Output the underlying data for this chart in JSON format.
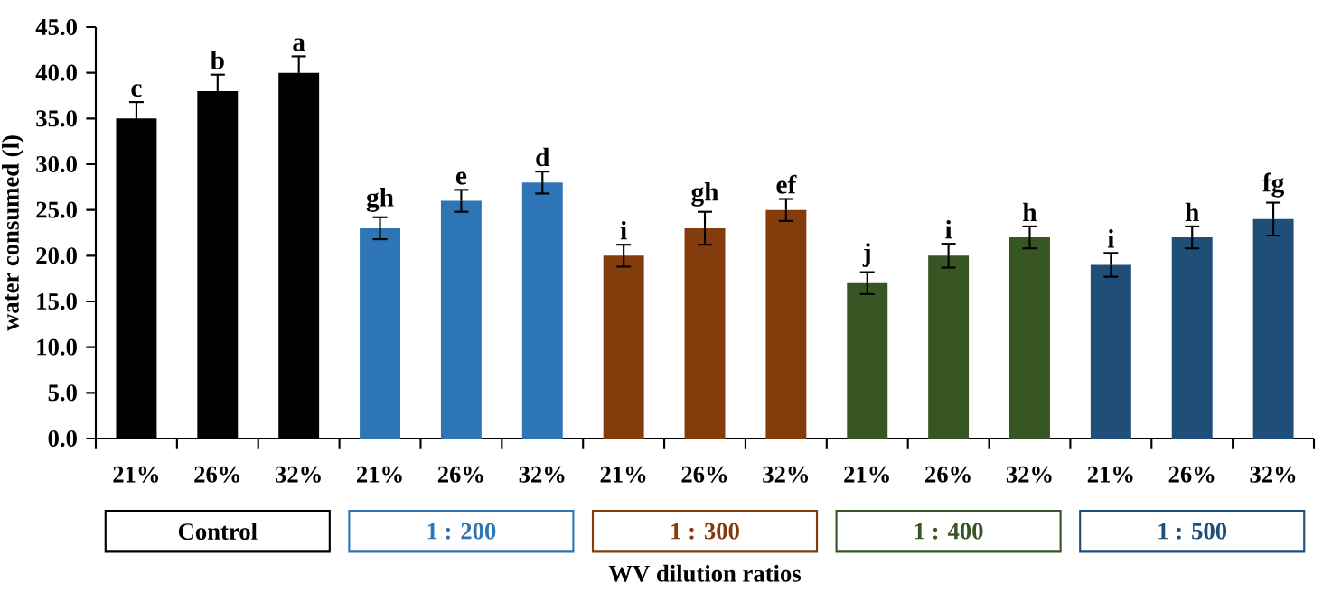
{
  "chart_data": {
    "type": "bar",
    "xlabel": "WV dilution ratios",
    "ylabel": "water consumed (l)",
    "categories": [
      "21%",
      "26%",
      "32%",
      "21%",
      "26%",
      "32%",
      "21%",
      "26%",
      "32%",
      "21%",
      "26%",
      "32%",
      "21%",
      "26%",
      "32%"
    ],
    "values": [
      35,
      38,
      40,
      23,
      26,
      28,
      20,
      23,
      25,
      17,
      20,
      22,
      19,
      22,
      24
    ],
    "errors": [
      1.8,
      1.8,
      1.8,
      1.2,
      1.2,
      1.2,
      1.2,
      1.8,
      1.2,
      1.2,
      1.3,
      1.2,
      1.3,
      1.2,
      1.8
    ],
    "colors": [
      "#000000",
      "#000000",
      "#000000",
      "#2e75b6",
      "#2e75b6",
      "#2e75b6",
      "#843c0c",
      "#843c0c",
      "#843c0c",
      "#375623",
      "#375623",
      "#375623",
      "#1f4e79",
      "#1f4e79",
      "#1f4e79"
    ],
    "ylim": [
      0,
      45
    ],
    "yticks": [
      {
        "value": 0,
        "label": "0.0"
      },
      {
        "value": 5,
        "label": "5.0"
      },
      {
        "value": 10,
        "label": "10.0"
      },
      {
        "value": 15,
        "label": "15.0"
      },
      {
        "value": 20,
        "label": "20.0"
      },
      {
        "value": 25,
        "label": "25.0"
      },
      {
        "value": 30,
        "label": "30.0"
      },
      {
        "value": 35,
        "label": "35.0"
      },
      {
        "value": 40,
        "label": "40.0"
      },
      {
        "value": 45,
        "label": "45.0"
      }
    ],
    "annotations": [
      "c",
      "b",
      "a",
      "gh",
      "e",
      "d",
      "i",
      "gh",
      "ef",
      "j",
      "i",
      "h",
      "i",
      "h",
      "fg",
      "Control",
      "1 : 200",
      "1 : 300",
      "1 : 400",
      "1 : 500"
    ]
  }
}
